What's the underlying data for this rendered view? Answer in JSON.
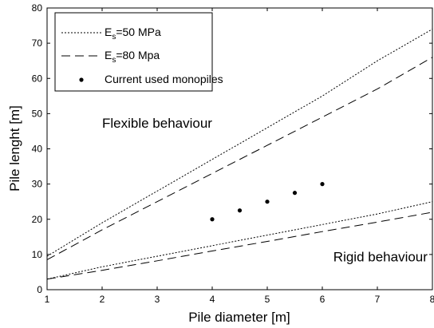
{
  "chart_data": {
    "type": "line",
    "xlabel": "Pile diameter [m]",
    "ylabel": "Pile lenght [m]",
    "xlim": [
      1,
      8
    ],
    "ylim": [
      0,
      80
    ],
    "xticks": [
      1,
      2,
      3,
      4,
      5,
      6,
      7,
      8
    ],
    "yticks": [
      0,
      10,
      20,
      30,
      40,
      50,
      60,
      70,
      80
    ],
    "grid": false,
    "legend_position": "top-left",
    "series": [
      {
        "name_prefix": "E",
        "name_sub": "s",
        "name_suffix": "=50 MPa",
        "style": "dotted",
        "branches": [
          {
            "x": [
              1,
              2,
              3,
              4,
              5,
              6,
              7,
              8
            ],
            "y": [
              9.5,
              19,
              28,
              37,
              46,
              55,
              65,
              74
            ]
          },
          {
            "x": [
              1,
              2,
              3,
              4,
              5,
              6,
              7,
              8
            ],
            "y": [
              3,
              6.5,
              9.5,
              12.5,
              15.5,
              18.5,
              21.5,
              25
            ]
          }
        ]
      },
      {
        "name_prefix": "E",
        "name_sub": "s",
        "name_suffix": "=80 Mpa",
        "style": "dashed",
        "branches": [
          {
            "x": [
              1,
              2,
              3,
              4,
              5,
              6,
              7,
              8
            ],
            "y": [
              8.5,
              17,
              25,
              33,
              41,
              49,
              57,
              66
            ]
          },
          {
            "x": [
              1,
              2,
              3,
              4,
              5,
              6,
              7,
              8
            ],
            "y": [
              3,
              5.5,
              8.2,
              11,
              13.7,
              16.5,
              19.2,
              22
            ]
          }
        ]
      },
      {
        "name": "Current used monopiles",
        "style": "points",
        "x": [
          4,
          4.5,
          5,
          5.5,
          6
        ],
        "y": [
          20,
          22.5,
          25,
          27.5,
          30
        ]
      }
    ],
    "annotations": [
      {
        "text": "Flexible behaviour",
        "x": 2,
        "y": 46
      },
      {
        "text": "Rigid behaviour",
        "x": 6.2,
        "y": 8
      }
    ]
  }
}
